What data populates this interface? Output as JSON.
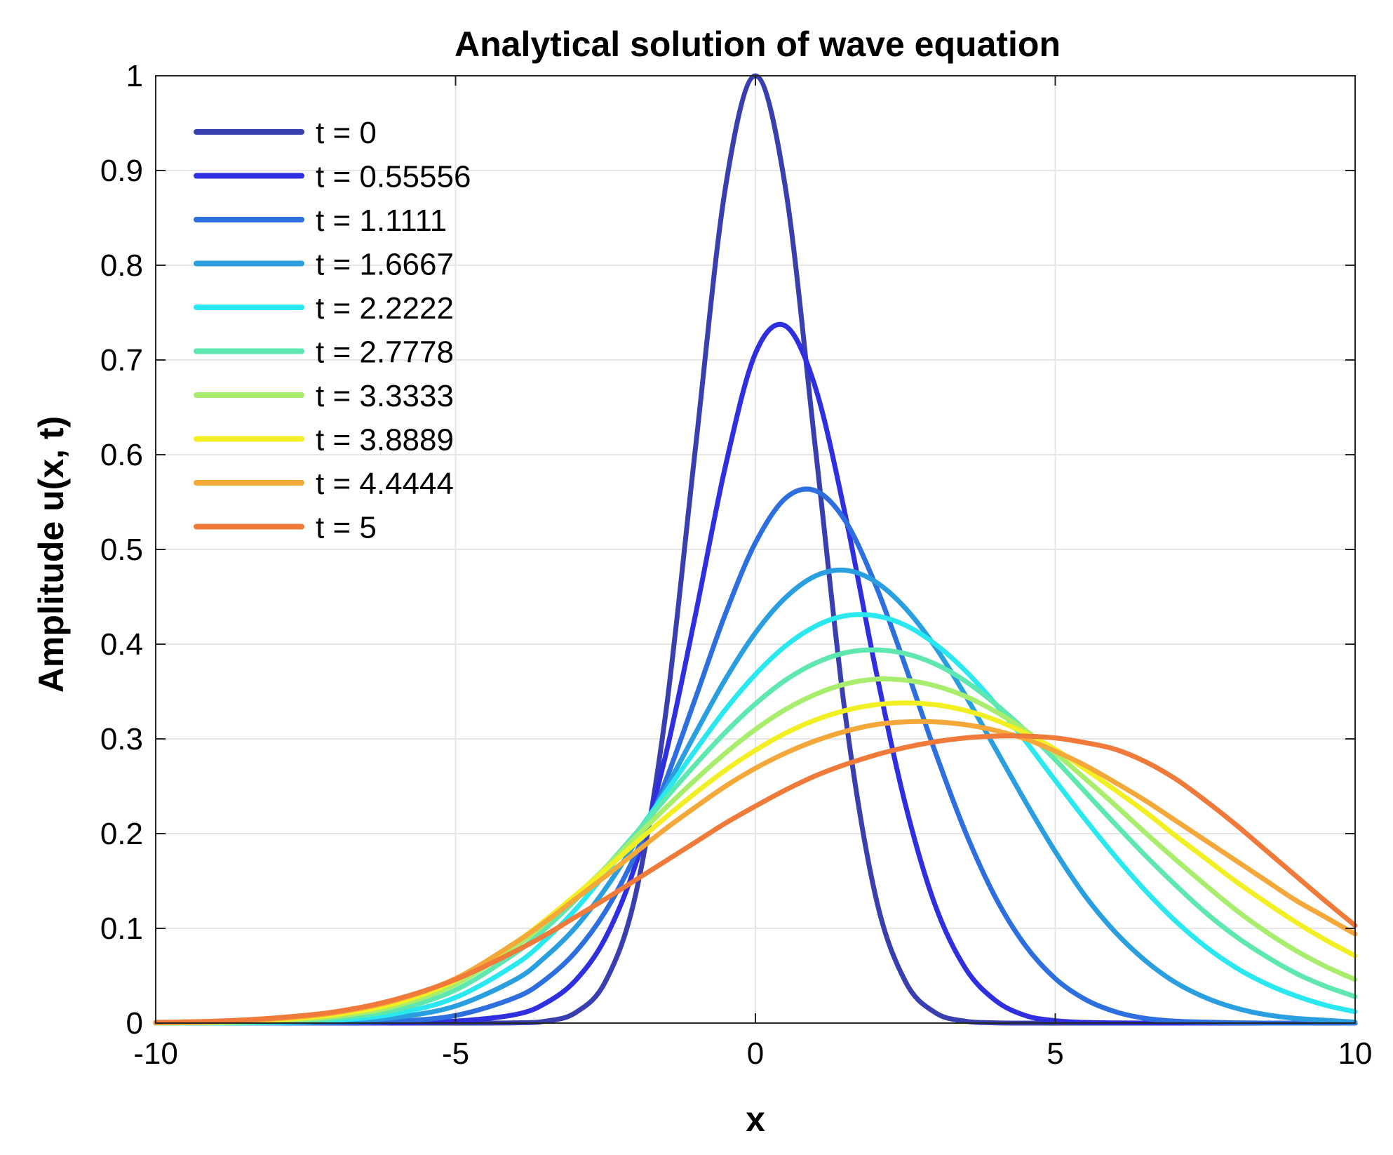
{
  "chart_data": {
    "type": "line",
    "title": "Analytical solution of wave equation",
    "xlabel": "x",
    "ylabel": "Amplitude u(x, t)",
    "xlim": [
      -10,
      10
    ],
    "ylim": [
      0,
      1
    ],
    "xticks": [
      -10,
      -5,
      0,
      5,
      10
    ],
    "xtick_labels": [
      "-10",
      "-5",
      "0",
      "5",
      "10"
    ],
    "yticks": [
      0,
      0.1,
      0.2,
      0.3,
      0.4,
      0.5,
      0.6,
      0.7,
      0.8,
      0.9,
      1
    ],
    "ytick_labels": [
      "0",
      "0.1",
      "0.2",
      "0.3",
      "0.4",
      "0.5",
      "0.6",
      "0.7",
      "0.8",
      "0.9",
      "1"
    ],
    "grid": true,
    "legend_position": "top-left",
    "x": [
      -10,
      -9,
      -8,
      -7,
      -6,
      -5,
      -4,
      -3.5,
      -3,
      -2.5,
      -2,
      -1.5,
      -1,
      -0.5,
      0,
      0.5,
      1,
      1.5,
      2,
      2.5,
      3,
      3.5,
      4,
      4.5,
      5,
      5.5,
      6,
      6.5,
      7,
      7.5,
      8,
      8.5,
      9,
      9.5,
      10
    ],
    "series": [
      {
        "name": "t = 0",
        "color": "#3a3fb0",
        "values": [
          0,
          0,
          0,
          0,
          0,
          0,
          0.0003,
          0.002,
          0.011,
          0.044,
          0.135,
          0.325,
          0.607,
          0.882,
          1.0,
          0.882,
          0.607,
          0.325,
          0.135,
          0.044,
          0.011,
          0.002,
          0.0003,
          0,
          0,
          0,
          0,
          0,
          0,
          0,
          0,
          0,
          0,
          0,
          0
        ]
      },
      {
        "name": "t = 0.55556",
        "color": "#2f2fe0",
        "values": [
          0,
          0,
          0,
          0,
          0.0002,
          0.002,
          0.009,
          0.021,
          0.045,
          0.09,
          0.167,
          0.282,
          0.431,
          0.588,
          0.707,
          0.736,
          0.671,
          0.536,
          0.375,
          0.231,
          0.124,
          0.058,
          0.024,
          0.008,
          0.0025,
          0.0007,
          0.0002,
          0,
          0,
          0,
          0,
          0,
          0,
          0,
          0
        ]
      },
      {
        "name": "t = 1.1111",
        "color": "#2e6fe0",
        "values": [
          0,
          0,
          0,
          0.0003,
          0.002,
          0.008,
          0.027,
          0.046,
          0.075,
          0.118,
          0.178,
          0.255,
          0.343,
          0.432,
          0.507,
          0.554,
          0.562,
          0.53,
          0.463,
          0.377,
          0.286,
          0.202,
          0.133,
          0.082,
          0.047,
          0.025,
          0.012,
          0.005,
          0.002,
          0.001,
          0.0003,
          0,
          0,
          0,
          0
        ]
      },
      {
        "name": "t = 1.6667",
        "color": "#2a9fe0",
        "values": [
          0,
          0,
          0.0003,
          0.002,
          0.006,
          0.018,
          0.046,
          0.07,
          0.101,
          0.142,
          0.191,
          0.247,
          0.306,
          0.363,
          0.412,
          0.449,
          0.472,
          0.478,
          0.466,
          0.438,
          0.397,
          0.346,
          0.29,
          0.234,
          0.181,
          0.134,
          0.096,
          0.066,
          0.043,
          0.027,
          0.016,
          0.009,
          0.005,
          0.003,
          0.001
        ]
      },
      {
        "name": "t = 2.2222",
        "color": "#2ae8f0",
        "values": [
          0,
          0.0002,
          0.0008,
          0.003,
          0.01,
          0.027,
          0.062,
          0.088,
          0.12,
          0.158,
          0.199,
          0.243,
          0.288,
          0.331,
          0.368,
          0.398,
          0.419,
          0.43,
          0.43,
          0.42,
          0.4,
          0.372,
          0.337,
          0.298,
          0.256,
          0.215,
          0.176,
          0.14,
          0.108,
          0.081,
          0.059,
          0.042,
          0.029,
          0.019,
          0.012
        ]
      },
      {
        "name": "t = 2.7778",
        "color": "#5ee8b0",
        "values": [
          0,
          0.0004,
          0.0015,
          0.005,
          0.014,
          0.035,
          0.074,
          0.1,
          0.13,
          0.164,
          0.2,
          0.237,
          0.273,
          0.307,
          0.337,
          0.362,
          0.38,
          0.391,
          0.394,
          0.39,
          0.379,
          0.361,
          0.337,
          0.309,
          0.278,
          0.244,
          0.21,
          0.177,
          0.146,
          0.117,
          0.092,
          0.071,
          0.053,
          0.039,
          0.028
        ]
      },
      {
        "name": "t = 3.3333",
        "color": "#a8ee6c",
        "values": [
          0.0002,
          0.0007,
          0.0025,
          0.007,
          0.018,
          0.041,
          0.081,
          0.106,
          0.134,
          0.164,
          0.196,
          0.227,
          0.257,
          0.285,
          0.31,
          0.331,
          0.347,
          0.358,
          0.363,
          0.362,
          0.356,
          0.345,
          0.329,
          0.309,
          0.285,
          0.258,
          0.23,
          0.201,
          0.173,
          0.146,
          0.12,
          0.097,
          0.077,
          0.06,
          0.046
        ]
      },
      {
        "name": "t = 3.8889",
        "color": "#f2f023",
        "values": [
          0.0003,
          0.001,
          0.0035,
          0.009,
          0.021,
          0.045,
          0.085,
          0.109,
          0.135,
          0.162,
          0.19,
          0.217,
          0.243,
          0.267,
          0.288,
          0.306,
          0.32,
          0.33,
          0.336,
          0.338,
          0.336,
          0.33,
          0.32,
          0.306,
          0.289,
          0.268,
          0.246,
          0.223,
          0.198,
          0.174,
          0.15,
          0.128,
          0.107,
          0.088,
          0.071
        ]
      },
      {
        "name": "t = 4.4444",
        "color": "#f5a83a",
        "values": [
          0.0005,
          0.0015,
          0.0045,
          0.011,
          0.024,
          0.047,
          0.085,
          0.107,
          0.131,
          0.155,
          0.18,
          0.205,
          0.228,
          0.25,
          0.269,
          0.285,
          0.298,
          0.308,
          0.315,
          0.318,
          0.318,
          0.315,
          0.309,
          0.3,
          0.287,
          0.272,
          0.254,
          0.235,
          0.214,
          0.193,
          0.172,
          0.151,
          0.13,
          0.112,
          0.094
        ]
      },
      {
        "name": "t = 5",
        "color": "#ef7a3a",
        "values": [
          0.0008,
          0.002,
          0.0055,
          0.012,
          0.025,
          0.046,
          0.076,
          0.093,
          0.112,
          0.131,
          0.151,
          0.171,
          0.191,
          0.211,
          0.229,
          0.246,
          0.261,
          0.273,
          0.283,
          0.291,
          0.297,
          0.301,
          0.303,
          0.303,
          0.301,
          0.296,
          0.289,
          0.276,
          0.258,
          0.235,
          0.21,
          0.183,
          0.156,
          0.129,
          0.103
        ]
      }
    ]
  }
}
